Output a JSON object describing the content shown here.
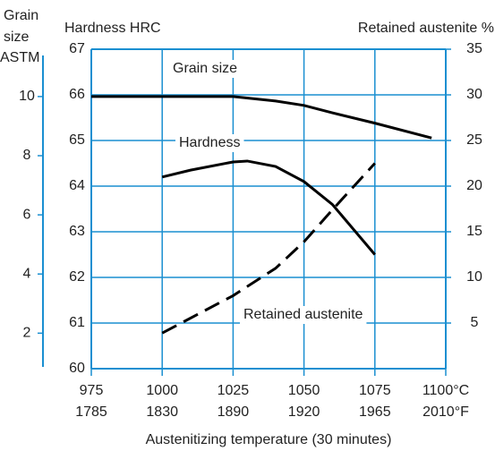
{
  "chart_data": {
    "type": "line",
    "y_title": "Hardness HRC",
    "y2_title": "Retained austenite %",
    "y3_title": [
      "Grain",
      "size",
      "ASTM"
    ],
    "x_title": "Austenitizing temperature (30 minutes)",
    "xlim": [
      975,
      1100
    ],
    "xticks": [
      975,
      1000,
      1025,
      1050,
      1075,
      {
        "value": 1100,
        "label": "1100°C"
      }
    ],
    "xticks_secondary": [
      "1785",
      "1830",
      "1890",
      "1920",
      "1965",
      "2010°F"
    ],
    "ylim": [
      60,
      67
    ],
    "yticks": [
      60,
      61,
      62,
      63,
      64,
      65,
      66,
      67
    ],
    "y2lim": [
      0,
      35
    ],
    "y2ticks": [
      5,
      10,
      15,
      20,
      25,
      30,
      35
    ],
    "y3lim": [
      0.8,
      11.6
    ],
    "y3ticks": [
      2,
      4,
      6,
      8,
      10
    ],
    "grid": true,
    "grid_color": "#1a8fd1",
    "series": [
      {
        "name": "Grain size",
        "color": "#000000",
        "axis": "y3",
        "dashed": false,
        "x": [
          975,
          1000,
          1025,
          1040,
          1050,
          1060,
          1075,
          1095
        ],
        "values": [
          10,
          10,
          10,
          9.85,
          9.7,
          9.45,
          9.1,
          8.6
        ]
      },
      {
        "name": "Hardness",
        "color": "#000000",
        "axis": "y",
        "dashed": false,
        "x": [
          1000,
          1010,
          1025,
          1030,
          1040,
          1050,
          1060,
          1075
        ],
        "values": [
          64.2,
          64.35,
          64.53,
          64.55,
          64.43,
          64.1,
          63.6,
          62.5
        ]
      },
      {
        "name": "Retained austenite",
        "color": "#000000",
        "axis": "y2",
        "dashed": true,
        "x": [
          1000,
          1025,
          1040,
          1050,
          1060,
          1075
        ],
        "values": [
          3.9,
          8,
          11,
          13.9,
          17.4,
          22.5
        ]
      }
    ]
  }
}
